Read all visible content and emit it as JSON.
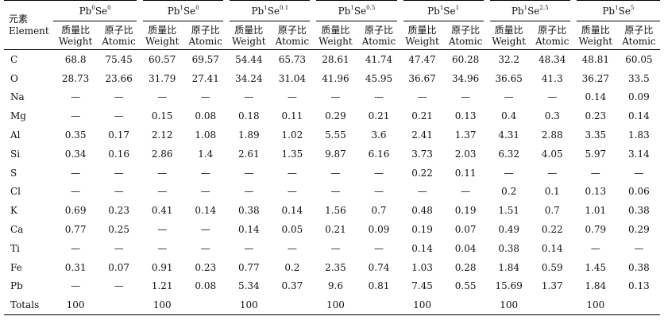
{
  "header": {
    "element_zh": "元素",
    "element_en": "Element",
    "groups": [
      {
        "base": "Pb",
        "sup1": "0",
        "mid": "Se",
        "sup2": "0"
      },
      {
        "base": "Pb",
        "sup1": "1",
        "mid": "Se",
        "sup2": "0"
      },
      {
        "base": "Pb",
        "sup1": "1",
        "mid": "Se",
        "sup2": "0.1"
      },
      {
        "base": "Pb",
        "sup1": "1",
        "mid": "Se",
        "sup2": "0.5"
      },
      {
        "base": "Pb",
        "sup1": "1",
        "mid": "Se",
        "sup2": "1"
      },
      {
        "base": "Pb",
        "sup1": "1",
        "mid": "Se",
        "sup2": "2.5"
      },
      {
        "base": "Pb",
        "sup1": "1",
        "mid": "Se",
        "sup2": "5"
      }
    ],
    "sub": {
      "weight_zh": "质量比",
      "weight_en": "Weight",
      "atomic_zh": "原子比",
      "atomic_en": "Atomic"
    }
  },
  "rows": [
    {
      "el": "C",
      "v": [
        "68.8",
        "75.45",
        "60.57",
        "69.57",
        "54.44",
        "65.73",
        "28.61",
        "41.74",
        "47.47",
        "60.28",
        "32.2",
        "48.34",
        "48.81",
        "60.05"
      ]
    },
    {
      "el": "O",
      "v": [
        "28.73",
        "23.66",
        "31.79",
        "27.41",
        "34.24",
        "31.04",
        "41.96",
        "45.95",
        "36.67",
        "34.96",
        "36.65",
        "41.3",
        "36.27",
        "33.5"
      ]
    },
    {
      "el": "Na",
      "v": [
        "—",
        "—",
        "—",
        "—",
        "—",
        "—",
        "—",
        "—",
        "—",
        "—",
        "—",
        "—",
        "0.14",
        "0.09"
      ]
    },
    {
      "el": "Mg",
      "v": [
        "—",
        "—",
        "0.15",
        "0.08",
        "0.18",
        "0.11",
        "0.29",
        "0.21",
        "0.21",
        "0.13",
        "0.4",
        "0.3",
        "0.23",
        "0.14"
      ]
    },
    {
      "el": "Al",
      "v": [
        "0.35",
        "0.17",
        "2.12",
        "1.08",
        "1.89",
        "1.02",
        "5.55",
        "3.6",
        "2.41",
        "1.37",
        "4.31",
        "2.88",
        "3.35",
        "1.83"
      ]
    },
    {
      "el": "Si",
      "v": [
        "0.34",
        "0.16",
        "2.86",
        "1.4",
        "2.61",
        "1.35",
        "9.87",
        "6.16",
        "3.73",
        "2.03",
        "6.32",
        "4.05",
        "5.97",
        "3.14"
      ]
    },
    {
      "el": "S",
      "v": [
        "—",
        "—",
        "—",
        "—",
        "—",
        "—",
        "—",
        "—",
        "0.22",
        "0.11",
        "—",
        "—",
        "—",
        "—"
      ]
    },
    {
      "el": "Cl",
      "v": [
        "—",
        "—",
        "—",
        "—",
        "—",
        "—",
        "—",
        "—",
        "—",
        "—",
        "0.2",
        "0.1",
        "0.13",
        "0.06"
      ]
    },
    {
      "el": "K",
      "v": [
        "0.69",
        "0.23",
        "0.41",
        "0.14",
        "0.38",
        "0.14",
        "1.56",
        "0.7",
        "0.48",
        "0.19",
        "1.51",
        "0.7",
        "1.01",
        "0.38"
      ]
    },
    {
      "el": "Ca",
      "v": [
        "0.77",
        "0.25",
        "—",
        "—",
        "0.14",
        "0.05",
        "0.21",
        "0.09",
        "0.19",
        "0.07",
        "0.49",
        "0.22",
        "0.79",
        "0.29"
      ]
    },
    {
      "el": "Ti",
      "v": [
        "—",
        "—",
        "—",
        "—",
        "—",
        "—",
        "—",
        "—",
        "0.14",
        "0.04",
        "0.38",
        "0.14",
        "—",
        "—"
      ]
    },
    {
      "el": "Fe",
      "v": [
        "0.31",
        "0.07",
        "0.91",
        "0.23",
        "0.77",
        "0.2",
        "2.35",
        "0.74",
        "1.03",
        "0.28",
        "1.84",
        "0.59",
        "1.45",
        "0.38"
      ]
    },
    {
      "el": "Pb",
      "v": [
        "—",
        "—",
        "1.21",
        "0.08",
        "5.34",
        "0.37",
        "9.6",
        "0.81",
        "7.45",
        "0.55",
        "15.69",
        "1.37",
        "1.84",
        "0.13"
      ]
    },
    {
      "el": "Totals",
      "v": [
        "100",
        "",
        "100",
        "",
        "100",
        "",
        "100",
        "",
        "100",
        "",
        "100",
        "",
        "100",
        ""
      ]
    }
  ]
}
